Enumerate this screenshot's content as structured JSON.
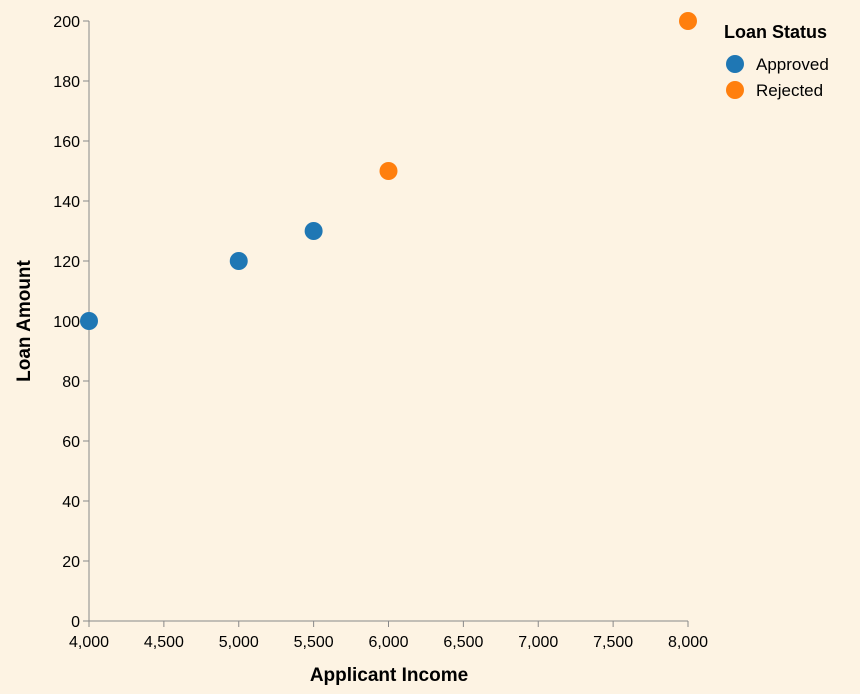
{
  "chart_data": {
    "type": "scatter",
    "title": "",
    "xlabel": "Applicant Income",
    "ylabel": "Loan Amount",
    "xlim": [
      4000,
      8000
    ],
    "ylim": [
      0,
      200
    ],
    "x_ticks": [
      4000,
      4500,
      5000,
      5500,
      6000,
      6500,
      7000,
      7500,
      8000
    ],
    "x_tick_labels": [
      "4,000",
      "4,500",
      "5,000",
      "5,500",
      "6,000",
      "6,500",
      "7,000",
      "7,500",
      "8,000"
    ],
    "y_ticks": [
      0,
      20,
      40,
      60,
      80,
      100,
      120,
      140,
      160,
      180,
      200
    ],
    "y_tick_labels": [
      "0",
      "20",
      "40",
      "60",
      "80",
      "100",
      "120",
      "140",
      "160",
      "180",
      "200"
    ],
    "grid": false,
    "legend": {
      "title": "Loan Status",
      "placement": "top-right"
    },
    "series": [
      {
        "name": "Approved",
        "color": "#1f77b4",
        "points": [
          {
            "x": 4000,
            "y": 100
          },
          {
            "x": 5000,
            "y": 120
          },
          {
            "x": 5500,
            "y": 130
          }
        ]
      },
      {
        "name": "Rejected",
        "color": "#ff7f0e",
        "points": [
          {
            "x": 6000,
            "y": 150
          },
          {
            "x": 8000,
            "y": 200
          }
        ]
      }
    ]
  }
}
